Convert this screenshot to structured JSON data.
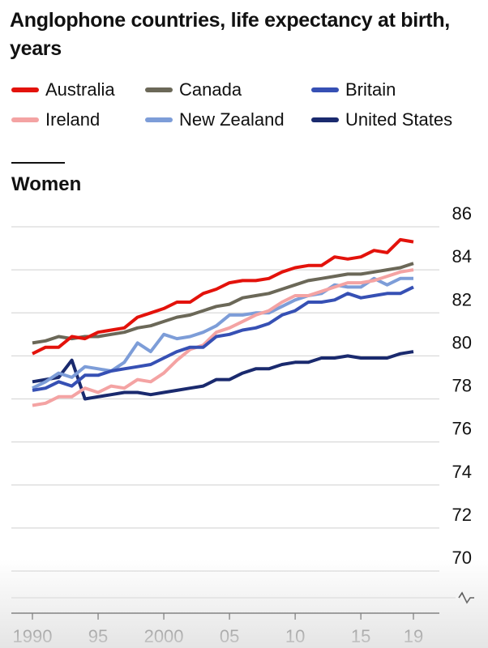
{
  "chart_data": {
    "type": "line",
    "title": "Anglophone countries, life expectancy at birth, years",
    "panel_title": "Women",
    "x": [
      1990,
      1991,
      1992,
      1993,
      1994,
      1995,
      1996,
      1997,
      1998,
      1999,
      2000,
      2001,
      2002,
      2003,
      2004,
      2005,
      2006,
      2007,
      2008,
      2009,
      2010,
      2011,
      2012,
      2013,
      2014,
      2015,
      2016,
      2017,
      2018,
      2019
    ],
    "xticks": [
      "1990",
      "95",
      "2000",
      "05",
      "10",
      "15",
      "19"
    ],
    "xtick_values": [
      1990,
      1995,
      2000,
      2005,
      2010,
      2015,
      2019
    ],
    "yticks": [
      "70",
      "72",
      "74",
      "76",
      "78",
      "80",
      "82",
      "84",
      "86"
    ],
    "ylim": [
      70,
      86
    ],
    "y_axis_break": true,
    "grid": true,
    "series": [
      {
        "name": "Australia",
        "color": "#e3120b",
        "values": [
          80.1,
          80.4,
          80.4,
          80.9,
          80.8,
          81.1,
          81.2,
          81.3,
          81.8,
          82.0,
          82.2,
          82.5,
          82.5,
          82.9,
          83.1,
          83.4,
          83.5,
          83.5,
          83.6,
          83.9,
          84.1,
          84.2,
          84.2,
          84.6,
          84.5,
          84.6,
          84.9,
          84.8,
          85.4,
          85.3
        ]
      },
      {
        "name": "Canada",
        "color": "#6b6858",
        "values": [
          80.6,
          80.7,
          80.9,
          80.8,
          80.9,
          80.9,
          81.0,
          81.1,
          81.3,
          81.4,
          81.6,
          81.8,
          81.9,
          82.1,
          82.3,
          82.4,
          82.7,
          82.8,
          82.9,
          83.1,
          83.3,
          83.5,
          83.6,
          83.7,
          83.8,
          83.8,
          83.9,
          84.0,
          84.1,
          84.3
        ]
      },
      {
        "name": "Britain",
        "color": "#3650b4",
        "values": [
          78.4,
          78.5,
          78.8,
          78.6,
          79.1,
          79.1,
          79.3,
          79.4,
          79.5,
          79.6,
          79.9,
          80.2,
          80.4,
          80.4,
          80.9,
          81.0,
          81.2,
          81.3,
          81.5,
          81.9,
          82.1,
          82.5,
          82.5,
          82.6,
          82.9,
          82.7,
          82.8,
          82.9,
          82.9,
          83.2
        ]
      },
      {
        "name": "Ireland",
        "color": "#f4a3a3",
        "values": [
          77.7,
          77.8,
          78.1,
          78.1,
          78.5,
          78.3,
          78.6,
          78.5,
          78.9,
          78.8,
          79.2,
          79.8,
          80.3,
          80.5,
          81.1,
          81.3,
          81.6,
          81.9,
          82.1,
          82.5,
          82.8,
          82.8,
          83.0,
          83.2,
          83.4,
          83.4,
          83.5,
          83.7,
          83.9,
          84.0
        ]
      },
      {
        "name": "New Zealand",
        "color": "#7d9dd8",
        "values": [
          78.5,
          78.8,
          79.2,
          79.0,
          79.5,
          79.4,
          79.3,
          79.7,
          80.6,
          80.2,
          81.0,
          80.8,
          80.9,
          81.1,
          81.4,
          81.9,
          81.9,
          82.0,
          82.0,
          82.3,
          82.6,
          82.8,
          82.9,
          83.3,
          83.2,
          83.2,
          83.6,
          83.3,
          83.6,
          83.6
        ]
      },
      {
        "name": "United States",
        "color": "#1a2a6e",
        "values": [
          78.8,
          78.9,
          79.0,
          79.8,
          78.0,
          78.1,
          78.2,
          78.3,
          78.3,
          78.2,
          78.3,
          78.4,
          78.5,
          78.6,
          78.9,
          78.9,
          79.2,
          79.4,
          79.4,
          79.6,
          79.7,
          79.7,
          79.9,
          79.9,
          80.0,
          79.9,
          79.9,
          79.9,
          80.1,
          80.2
        ]
      }
    ]
  }
}
